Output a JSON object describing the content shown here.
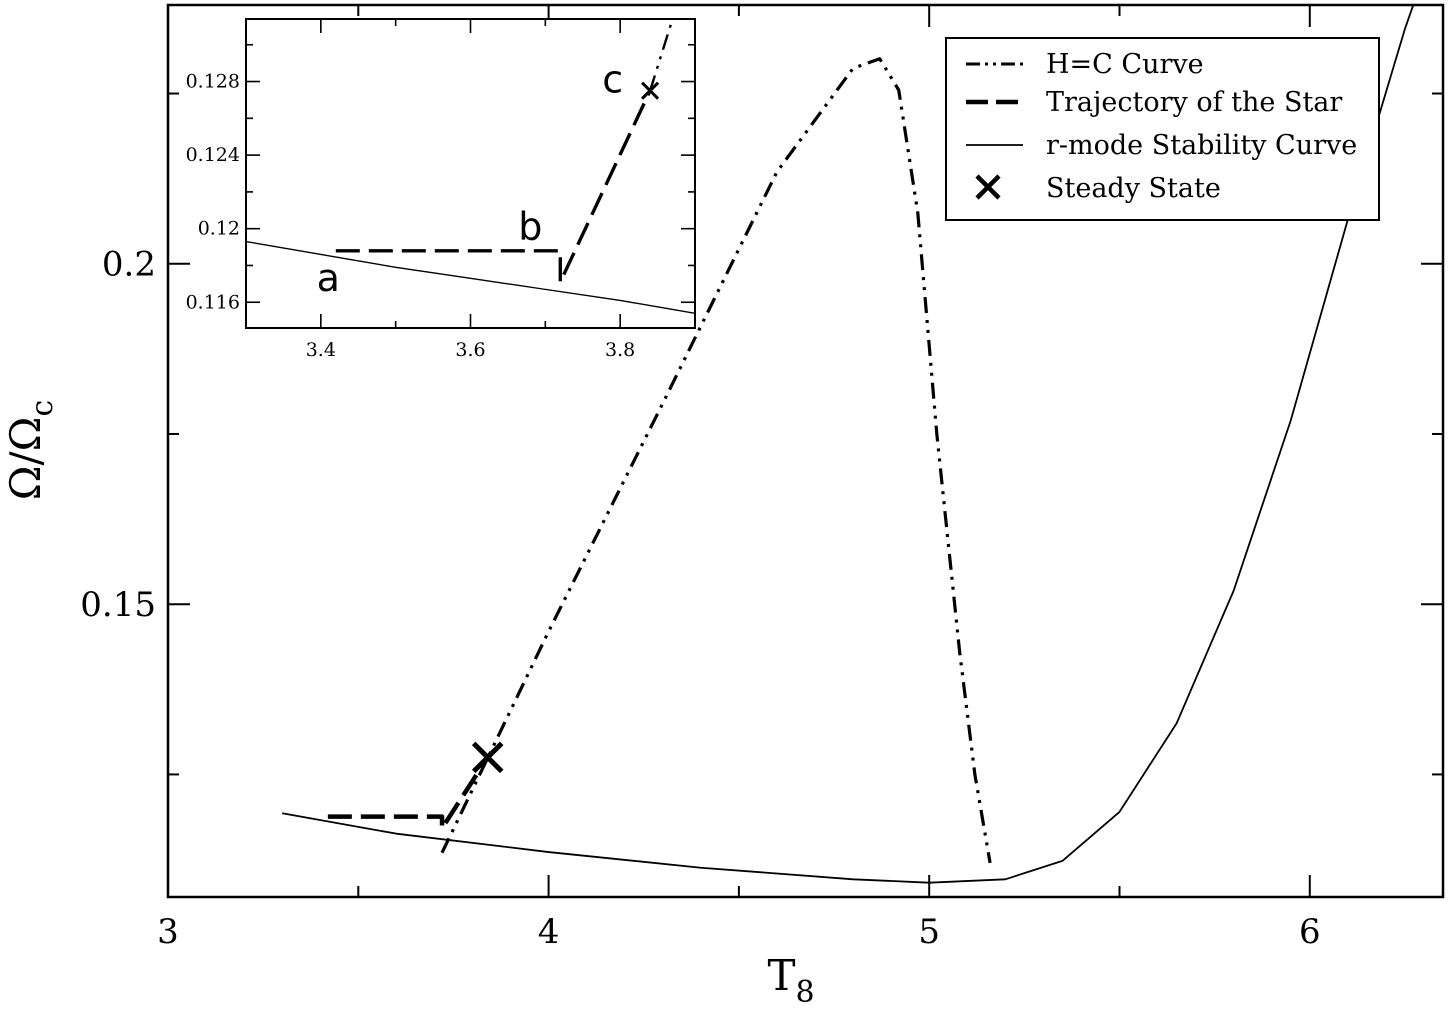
{
  "chart_data": [
    {
      "type": "line",
      "xlabel_main": "T",
      "xlabel_sub": "8",
      "ylabel_main": "Ω/Ω",
      "ylabel_sub": "c",
      "xlim": [
        3.0,
        6.35
      ],
      "ylim": [
        0.107,
        0.238
      ],
      "xticks": [
        3,
        4,
        5,
        6
      ],
      "yticks": [
        0.15,
        0.2
      ],
      "yticks_labels": [
        "0.15",
        "0.2"
      ],
      "xticks_labels": [
        "3",
        "4",
        "5",
        "6"
      ],
      "legend_position": "top-right",
      "legend": [
        {
          "label": "H=C Curve",
          "style": "dash-dot-dot"
        },
        {
          "label": "Trajectory of the Star",
          "style": "dashed"
        },
        {
          "label": "r-mode Stability Curve",
          "style": "solid"
        },
        {
          "label": "Steady State",
          "style": "x-marker"
        }
      ],
      "series": [
        {
          "name": "H=C Curve",
          "x": [
            3.72,
            4.0,
            4.3,
            4.6,
            4.8,
            4.87,
            4.92,
            4.97,
            5.02,
            5.08,
            5.12,
            5.16
          ],
          "y": [
            0.1135,
            0.146,
            0.1795,
            0.2135,
            0.2287,
            0.2301,
            0.2255,
            0.2075,
            0.175,
            0.143,
            0.125,
            0.112
          ]
        },
        {
          "name": "Trajectory of the Star",
          "x": [
            3.42,
            3.72,
            3.72,
            3.84
          ],
          "y": [
            0.1188,
            0.1188,
            0.1171,
            0.1275
          ]
        },
        {
          "name": "r-mode Stability Curve",
          "x": [
            3.3,
            3.6,
            4.0,
            4.4,
            4.8,
            5.0,
            5.2,
            5.35,
            5.5,
            5.65,
            5.8,
            5.95,
            6.1,
            6.25,
            6.35
          ],
          "y": [
            0.1193,
            0.1163,
            0.1136,
            0.1113,
            0.1096,
            0.1091,
            0.1096,
            0.1123,
            0.1195,
            0.1325,
            0.152,
            0.177,
            0.2065,
            0.2345,
            0.2505
          ]
        },
        {
          "name": "Steady State",
          "x": [
            3.84
          ],
          "y": [
            0.1275
          ]
        }
      ]
    },
    {
      "type": "line",
      "inset": true,
      "xlim": [
        3.3,
        3.9
      ],
      "ylim": [
        0.1146,
        0.1314
      ],
      "xticks": [
        3.4,
        3.6,
        3.8
      ],
      "xticks_labels": [
        "3.4",
        "3.6",
        "3.8"
      ],
      "yticks": [
        0.116,
        0.12,
        0.124,
        0.128
      ],
      "yticks_labels": [
        "0.116",
        "0.12",
        "0.124",
        "0.128"
      ],
      "annotations": [
        {
          "text": "a",
          "x": 3.41,
          "y": 0.1166
        },
        {
          "text": "b",
          "x": 3.68,
          "y": 0.1194
        },
        {
          "text": "c",
          "x": 3.79,
          "y": 0.1274
        }
      ],
      "series": [
        {
          "name": "H=C Curve",
          "x": [
            3.84,
            3.87
          ],
          "y": [
            0.1275,
            0.1314
          ]
        },
        {
          "name": "Trajectory of the Star",
          "x": [
            3.42,
            3.72,
            3.72,
            3.84
          ],
          "y": [
            0.1188,
            0.1188,
            0.1171,
            0.1275
          ]
        },
        {
          "name": "r-mode Stability Curve",
          "x": [
            3.3,
            3.4,
            3.5,
            3.6,
            3.7,
            3.8,
            3.9
          ],
          "y": [
            0.1193,
            0.1186,
            0.1179,
            0.1173,
            0.1167,
            0.1161,
            0.1154
          ]
        },
        {
          "name": "Steady State",
          "x": [
            3.84
          ],
          "y": [
            0.1275
          ]
        }
      ]
    }
  ]
}
